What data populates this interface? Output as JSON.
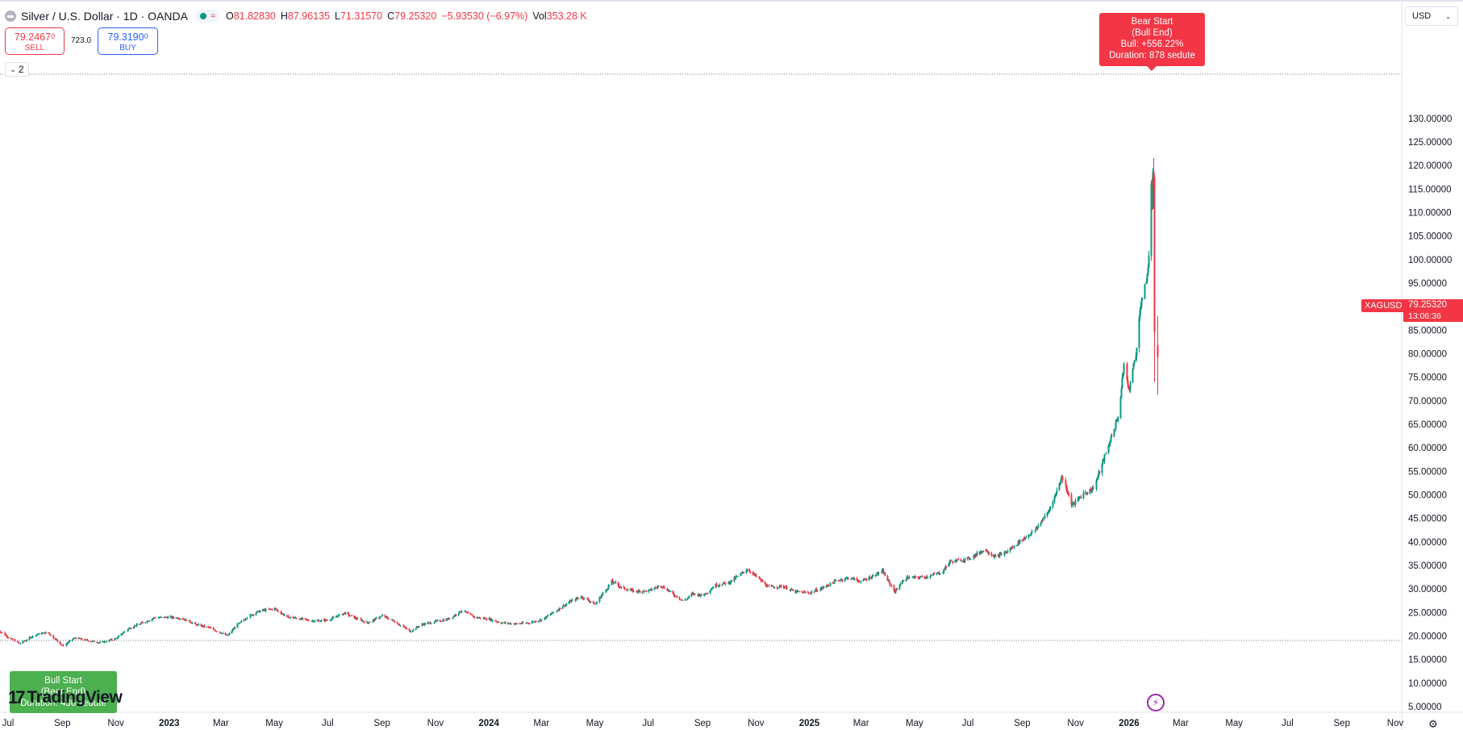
{
  "header": {
    "title": "Silver / U.S. Dollar · 1D · OANDA",
    "ohlc": [
      {
        "k": "O",
        "v": "81.82830"
      },
      {
        "k": "H",
        "v": "87.96135"
      },
      {
        "k": "L",
        "v": "71.31570"
      },
      {
        "k": "C",
        "v": "79.25320"
      },
      {
        "k": "",
        "v": "−5.93530 (−6.97%)"
      },
      {
        "k": "Vol",
        "v": "353.28 K"
      }
    ]
  },
  "trade": {
    "sell_price": "79.2467",
    "sell_sup": "0",
    "sell_label": "SELL",
    "spread": "723.0",
    "buy_price": "79.3190",
    "buy_sup": "0",
    "buy_label": "BUY"
  },
  "collapse_count": "2",
  "currency": "USD",
  "last_price": {
    "symbol": "XAGUSD",
    "price": "79.25320",
    "countdown": "13:06:36"
  },
  "annotations": {
    "bear": [
      "Bear Start",
      "(Bull End)",
      "Bull: +556.22%",
      "Duration: 878 sedute"
    ],
    "bull": [
      "Bull Start",
      "(Bear End)",
      "Duration: 436 sedute"
    ]
  },
  "brand": {
    "logo_mark": "17",
    "logo_text": "TradingView"
  },
  "colors": {
    "up": "#089981",
    "down": "#f23645",
    "bull_label": "#4caf50",
    "bear_label": "#f23645"
  },
  "chart_data": {
    "type": "candlestick",
    "title": "Silver / U.S. Dollar · 1D · OANDA",
    "y_ticks": [
      "5.00000",
      "10.00000",
      "15.00000",
      "20.00000",
      "25.00000",
      "30.00000",
      "35.00000",
      "40.00000",
      "45.00000",
      "50.00000",
      "55.00000",
      "60.00000",
      "65.00000",
      "70.00000",
      "75.00000",
      "80.00000",
      "85.00000",
      "90.00000",
      "95.00000",
      "100.00000",
      "105.00000",
      "110.00000",
      "115.00000",
      "120.00000",
      "125.00000",
      "130.00000"
    ],
    "x_ticks": [
      {
        "label": "Jul",
        "date": "2022-07-01",
        "bold": false
      },
      {
        "label": "Sep",
        "date": "2022-09-01",
        "bold": false
      },
      {
        "label": "Nov",
        "date": "2022-11-01",
        "bold": false
      },
      {
        "label": "2023",
        "date": "2023-01-01",
        "bold": true
      },
      {
        "label": "Mar",
        "date": "2023-03-01",
        "bold": false
      },
      {
        "label": "May",
        "date": "2023-05-01",
        "bold": false
      },
      {
        "label": "Jul",
        "date": "2023-07-01",
        "bold": false
      },
      {
        "label": "Sep",
        "date": "2023-09-01",
        "bold": false
      },
      {
        "label": "Nov",
        "date": "2023-11-01",
        "bold": false
      },
      {
        "label": "2024",
        "date": "2024-01-01",
        "bold": true
      },
      {
        "label": "Mar",
        "date": "2024-03-01",
        "bold": false
      },
      {
        "label": "May",
        "date": "2024-05-01",
        "bold": false
      },
      {
        "label": "Jul",
        "date": "2024-07-01",
        "bold": false
      },
      {
        "label": "Sep",
        "date": "2024-09-01",
        "bold": false
      },
      {
        "label": "Nov",
        "date": "2024-11-01",
        "bold": false
      },
      {
        "label": "2025",
        "date": "2025-01-01",
        "bold": true
      },
      {
        "label": "Mar",
        "date": "2025-03-01",
        "bold": false
      },
      {
        "label": "May",
        "date": "2025-05-01",
        "bold": false
      },
      {
        "label": "Jul",
        "date": "2025-07-01",
        "bold": false
      },
      {
        "label": "Sep",
        "date": "2025-09-01",
        "bold": false
      },
      {
        "label": "Nov",
        "date": "2025-11-01",
        "bold": false
      },
      {
        "label": "2026",
        "date": "2026-01-01",
        "bold": true
      },
      {
        "label": "Mar",
        "date": "2026-03-01",
        "bold": false
      },
      {
        "label": "May",
        "date": "2026-05-01",
        "bold": false
      },
      {
        "label": "Jul",
        "date": "2026-07-01",
        "bold": false
      },
      {
        "label": "Sep",
        "date": "2026-09-01",
        "bold": false
      },
      {
        "label": "Nov",
        "date": "2026-11-01",
        "bold": false
      }
    ],
    "levels": {
      "high": 121.6,
      "low": 17.7
    },
    "last_price": 79.2532,
    "series": [
      {
        "date": "2022-06-20",
        "close": 21.2
      },
      {
        "date": "2022-07-01",
        "close": 19.7
      },
      {
        "date": "2022-07-14",
        "close": 18.4
      },
      {
        "date": "2022-08-01",
        "close": 20.3
      },
      {
        "date": "2022-08-15",
        "close": 20.8
      },
      {
        "date": "2022-09-01",
        "close": 17.9
      },
      {
        "date": "2022-09-15",
        "close": 19.6
      },
      {
        "date": "2022-10-01",
        "close": 19.0
      },
      {
        "date": "2022-10-15",
        "close": 18.6
      },
      {
        "date": "2022-11-01",
        "close": 19.5
      },
      {
        "date": "2022-11-15",
        "close": 21.6
      },
      {
        "date": "2022-12-01",
        "close": 22.8
      },
      {
        "date": "2022-12-15",
        "close": 23.9
      },
      {
        "date": "2023-01-01",
        "close": 24.0
      },
      {
        "date": "2023-01-15",
        "close": 23.8
      },
      {
        "date": "2023-02-01",
        "close": 22.4
      },
      {
        "date": "2023-02-15",
        "close": 21.8
      },
      {
        "date": "2023-03-08",
        "close": 20.1
      },
      {
        "date": "2023-03-20",
        "close": 22.5
      },
      {
        "date": "2023-04-01",
        "close": 24.2
      },
      {
        "date": "2023-04-15",
        "close": 25.4
      },
      {
        "date": "2023-05-01",
        "close": 25.8
      },
      {
        "date": "2023-05-15",
        "close": 24.1
      },
      {
        "date": "2023-06-01",
        "close": 23.6
      },
      {
        "date": "2023-06-15",
        "close": 23.2
      },
      {
        "date": "2023-07-01",
        "close": 23.4
      },
      {
        "date": "2023-07-20",
        "close": 24.9
      },
      {
        "date": "2023-08-01",
        "close": 23.8
      },
      {
        "date": "2023-08-15",
        "close": 22.8
      },
      {
        "date": "2023-09-01",
        "close": 24.3
      },
      {
        "date": "2023-09-15",
        "close": 23.1
      },
      {
        "date": "2023-10-03",
        "close": 21.0
      },
      {
        "date": "2023-10-15",
        "close": 22.4
      },
      {
        "date": "2023-11-01",
        "close": 23.1
      },
      {
        "date": "2023-11-15",
        "close": 23.6
      },
      {
        "date": "2023-12-01",
        "close": 25.4
      },
      {
        "date": "2023-12-15",
        "close": 24.0
      },
      {
        "date": "2024-01-01",
        "close": 23.6
      },
      {
        "date": "2024-01-15",
        "close": 22.8
      },
      {
        "date": "2024-02-01",
        "close": 22.6
      },
      {
        "date": "2024-02-15",
        "close": 22.8
      },
      {
        "date": "2024-03-01",
        "close": 23.5
      },
      {
        "date": "2024-03-15",
        "close": 25.1
      },
      {
        "date": "2024-04-01",
        "close": 27.2
      },
      {
        "date": "2024-04-15",
        "close": 28.4
      },
      {
        "date": "2024-05-01",
        "close": 26.8
      },
      {
        "date": "2024-05-20",
        "close": 31.6
      },
      {
        "date": "2024-06-01",
        "close": 30.2
      },
      {
        "date": "2024-06-15",
        "close": 29.5
      },
      {
        "date": "2024-07-01",
        "close": 29.6
      },
      {
        "date": "2024-07-15",
        "close": 30.8
      },
      {
        "date": "2024-08-01",
        "close": 28.5
      },
      {
        "date": "2024-08-10",
        "close": 27.4
      },
      {
        "date": "2024-08-20",
        "close": 29.0
      },
      {
        "date": "2024-09-01",
        "close": 28.6
      },
      {
        "date": "2024-09-15",
        "close": 30.8
      },
      {
        "date": "2024-10-01",
        "close": 31.4
      },
      {
        "date": "2024-10-22",
        "close": 34.2
      },
      {
        "date": "2024-11-01",
        "close": 32.6
      },
      {
        "date": "2024-11-15",
        "close": 30.4
      },
      {
        "date": "2024-12-01",
        "close": 30.6
      },
      {
        "date": "2024-12-15",
        "close": 29.4
      },
      {
        "date": "2025-01-01",
        "close": 29.2
      },
      {
        "date": "2025-01-15",
        "close": 30.2
      },
      {
        "date": "2025-02-01",
        "close": 31.8
      },
      {
        "date": "2025-02-15",
        "close": 32.4
      },
      {
        "date": "2025-03-01",
        "close": 31.6
      },
      {
        "date": "2025-03-25",
        "close": 33.8
      },
      {
        "date": "2025-04-08",
        "close": 29.4
      },
      {
        "date": "2025-04-20",
        "close": 32.4
      },
      {
        "date": "2025-05-01",
        "close": 32.4
      },
      {
        "date": "2025-05-15",
        "close": 32.6
      },
      {
        "date": "2025-06-01",
        "close": 33.6
      },
      {
        "date": "2025-06-10",
        "close": 35.8
      },
      {
        "date": "2025-07-01",
        "close": 36.4
      },
      {
        "date": "2025-07-20",
        "close": 38.4
      },
      {
        "date": "2025-08-01",
        "close": 36.8
      },
      {
        "date": "2025-08-15",
        "close": 38.0
      },
      {
        "date": "2025-09-01",
        "close": 40.6
      },
      {
        "date": "2025-09-15",
        "close": 42.4
      },
      {
        "date": "2025-10-01",
        "close": 46.6
      },
      {
        "date": "2025-10-16",
        "close": 53.8
      },
      {
        "date": "2025-10-28",
        "close": 47.8
      },
      {
        "date": "2025-11-10",
        "close": 50.4
      },
      {
        "date": "2025-11-20",
        "close": 51.2
      },
      {
        "date": "2025-12-01",
        "close": 56.4
      },
      {
        "date": "2025-12-10",
        "close": 61.6
      },
      {
        "date": "2025-12-20",
        "close": 67.4
      },
      {
        "date": "2025-12-26",
        "close": 77.8
      },
      {
        "date": "2025-12-31",
        "close": 72.0
      },
      {
        "date": "2026-01-07",
        "close": 78.4
      },
      {
        "date": "2026-01-14",
        "close": 90.8
      },
      {
        "date": "2026-01-20",
        "close": 94.6
      },
      {
        "date": "2026-01-24",
        "close": 103.4
      },
      {
        "date": "2026-01-26",
        "close": 116.4
      },
      {
        "date": "2026-01-27",
        "close": 110.2
      },
      {
        "date": "2026-01-28",
        "close": 117.6
      },
      {
        "date": "2026-01-29",
        "close": 115.8
      },
      {
        "date": "2026-01-30",
        "close": 85.4
      },
      {
        "date": "2026-02-02",
        "close": 79.25
      }
    ]
  }
}
